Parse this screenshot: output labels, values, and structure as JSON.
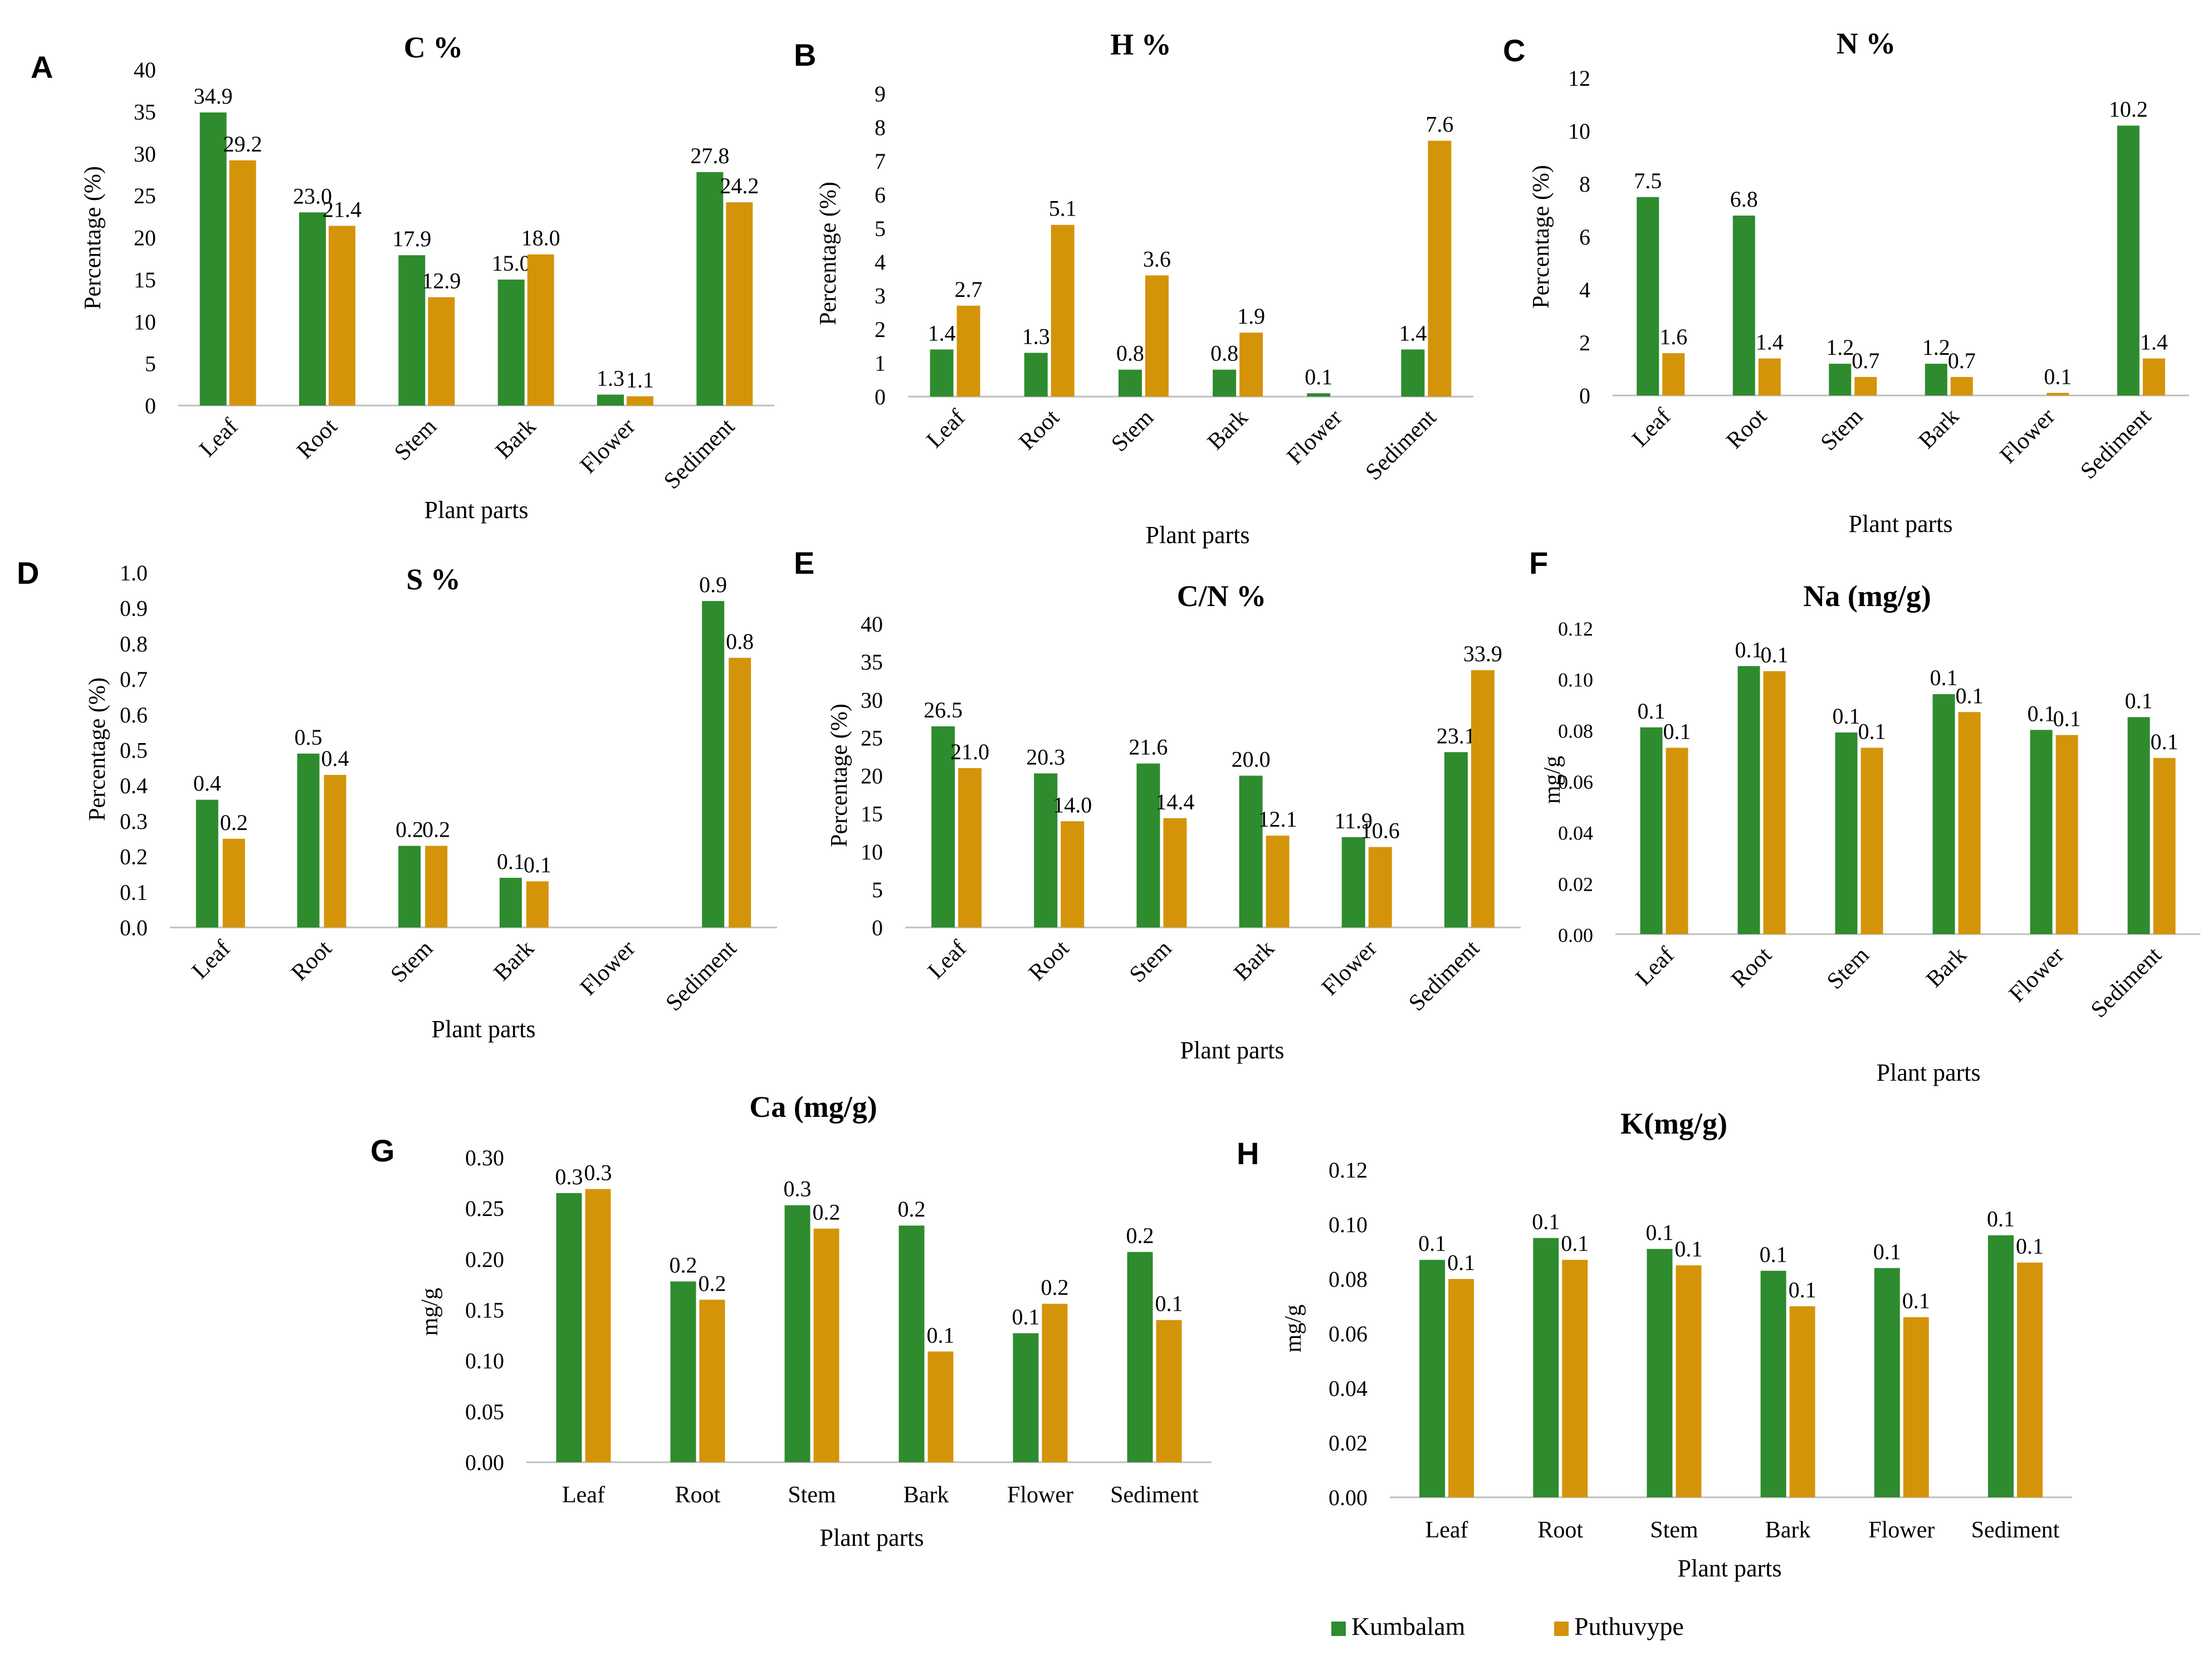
{
  "colors": {
    "Kumbalam": "#2e8b2e",
    "Puthuvype": "#d4940a",
    "axis": "#bfbfbf",
    "text": "#000000"
  },
  "legend": [
    {
      "name": "Kumbalam",
      "color": "#2e8b2e"
    },
    {
      "name": "Puthuvype",
      "color": "#d4940a"
    }
  ],
  "chart_data": [
    {
      "panel": "A",
      "title": "C %",
      "type": "bar",
      "xlabel": "Plant parts",
      "ylabel": "Percentage (%)",
      "ylim": [
        0,
        40
      ],
      "yticks": [
        "0",
        "5",
        "10",
        "15",
        "20",
        "25",
        "30",
        "35",
        "40"
      ],
      "categories": [
        "Leaf",
        "Root",
        "Stem",
        "Bark",
        "Flower",
        "Sediment"
      ],
      "series": [
        {
          "name": "Kumbalam",
          "values": [
            34.9,
            23.0,
            17.9,
            15.0,
            1.3,
            27.8
          ],
          "labels": [
            "34.9",
            "23.0",
            "17.9",
            "15.0",
            "1.3",
            "27.8"
          ]
        },
        {
          "name": "Puthuvype",
          "values": [
            29.2,
            21.4,
            12.9,
            18.0,
            1.1,
            24.2
          ],
          "labels": [
            "29.2",
            "21.4",
            "12.9",
            "18.0",
            "1.1",
            "24.2"
          ]
        }
      ]
    },
    {
      "panel": "B",
      "title": "H %",
      "type": "bar",
      "xlabel": "Plant parts",
      "ylabel": "Percentage (%)",
      "ylim": [
        0,
        9
      ],
      "yticks": [
        "0",
        "1",
        "2",
        "3",
        "4",
        "5",
        "6",
        "7",
        "8",
        "9"
      ],
      "categories": [
        "Leaf",
        "Root",
        "Stem",
        "Bark",
        "Flower",
        "Sediment"
      ],
      "series": [
        {
          "name": "Kumbalam",
          "values": [
            1.4,
            1.3,
            0.8,
            0.8,
            0.1,
            1.4
          ],
          "labels": [
            "1.4",
            "1.3",
            "0.8",
            "0.8",
            "0.1",
            "1.4"
          ]
        },
        {
          "name": "Puthuvype",
          "values": [
            2.7,
            5.1,
            3.6,
            1.9,
            0,
            7.6
          ],
          "labels": [
            "2.7",
            "5.1",
            "3.6",
            "1.9",
            "",
            "7.6"
          ]
        }
      ]
    },
    {
      "panel": "C",
      "title": "N %",
      "type": "bar",
      "xlabel": "Plant parts",
      "ylabel": "Percentage (%)",
      "ylim": [
        0,
        12
      ],
      "yticks": [
        "0",
        "2",
        "4",
        "6",
        "8",
        "10",
        "12"
      ],
      "categories": [
        "Leaf",
        "Root",
        "Stem",
        "Bark",
        "Flower",
        "Sediment"
      ],
      "series": [
        {
          "name": "Kumbalam",
          "values": [
            7.5,
            6.8,
            1.2,
            1.2,
            0,
            10.2
          ],
          "labels": [
            "7.5",
            "6.8",
            "1.2",
            "1.2",
            "",
            "10.2"
          ]
        },
        {
          "name": "Puthuvype",
          "values": [
            1.6,
            1.4,
            0.7,
            0.7,
            0.1,
            1.4
          ],
          "labels": [
            "1.6",
            "1.4",
            "0.7",
            "0.7",
            "0.1",
            "1.4"
          ]
        }
      ]
    },
    {
      "panel": "D",
      "title": "S %",
      "type": "bar",
      "xlabel": "Plant parts",
      "ylabel": "Percentage (%)",
      "ylim": [
        0,
        1
      ],
      "yticks": [
        "0.0",
        "0.1",
        "0.2",
        "0.3",
        "0.4",
        "0.5",
        "0.6",
        "0.7",
        "0.8",
        "0.9",
        "1.0"
      ],
      "categories": [
        "Leaf",
        "Root",
        "Stem",
        "Bark",
        "Flower",
        "Sediment"
      ],
      "series": [
        {
          "name": "Kumbalam",
          "values": [
            0.36,
            0.49,
            0.23,
            0.14,
            0,
            0.92
          ],
          "labels": [
            "0.4",
            "0.5",
            "0.2",
            "0.1",
            "",
            "0.9"
          ]
        },
        {
          "name": "Puthuvype",
          "values": [
            0.25,
            0.43,
            0.23,
            0.13,
            0,
            0.76
          ],
          "labels": [
            "0.2",
            "0.4",
            "0.2",
            "0.1",
            "",
            "0.8"
          ]
        }
      ]
    },
    {
      "panel": "E",
      "title": "C/N %",
      "type": "bar",
      "xlabel": "Plant parts",
      "ylabel": "Percentage (%)",
      "ylim": [
        0,
        40
      ],
      "yticks": [
        "0",
        "5",
        "10",
        "15",
        "20",
        "25",
        "30",
        "35",
        "40"
      ],
      "categories": [
        "Leaf",
        "Root",
        "Stem",
        "Bark",
        "Flower",
        "Sediment"
      ],
      "series": [
        {
          "name": "Kumbalam",
          "values": [
            26.5,
            20.3,
            21.6,
            20.0,
            11.9,
            23.1
          ],
          "labels": [
            "26.5",
            "20.3",
            "21.6",
            "20.0",
            "11.9",
            "23.1"
          ]
        },
        {
          "name": "Puthuvype",
          "values": [
            21.0,
            14.0,
            14.4,
            12.1,
            10.6,
            33.9
          ],
          "labels": [
            "21.0",
            "14.0",
            "14.4",
            "12.1",
            "10.6",
            "33.9"
          ]
        }
      ]
    },
    {
      "panel": "F",
      "title": "Na (mg/g)",
      "type": "bar",
      "xlabel": "Plant parts",
      "ylabel": "mg/g",
      "ylim": [
        0,
        0.12
      ],
      "yticks": [
        "0.00",
        "0.02",
        "0.04",
        "0.06",
        "0.08",
        "0.10",
        "0.12"
      ],
      "categories": [
        "Leaf",
        "Root",
        "Stem",
        "Bark",
        "Flower",
        "Sediment"
      ],
      "series": [
        {
          "name": "Kumbalam",
          "values": [
            0.081,
            0.105,
            0.079,
            0.094,
            0.08,
            0.085
          ],
          "labels": [
            "0.1",
            "0.1",
            "0.1",
            "0.1",
            "0.1",
            "0.1"
          ]
        },
        {
          "name": "Puthuvype",
          "values": [
            0.073,
            0.103,
            0.073,
            0.087,
            0.078,
            0.069
          ],
          "labels": [
            "0.1",
            "0.1",
            "0.1",
            "0.1",
            "0.1",
            "0.1"
          ]
        }
      ]
    },
    {
      "panel": "G",
      "title": "Ca (mg/g)",
      "type": "bar",
      "xlabel": "Plant parts",
      "ylabel": "mg/g",
      "ylim": [
        0,
        0.3
      ],
      "yticks": [
        "0.00",
        "0.05",
        "0.10",
        "0.15",
        "0.20",
        "0.25",
        "0.30"
      ],
      "categories": [
        "Leaf",
        "Root",
        "Stem",
        "Bark",
        "Flower",
        "Sediment"
      ],
      "series": [
        {
          "name": "Kumbalam",
          "values": [
            0.265,
            0.178,
            0.253,
            0.233,
            0.127,
            0.207
          ],
          "labels": [
            "0.3",
            "0.2",
            "0.3",
            "0.2",
            "0.1",
            "0.2"
          ]
        },
        {
          "name": "Puthuvype",
          "values": [
            0.269,
            0.16,
            0.23,
            0.109,
            0.156,
            0.14
          ],
          "labels": [
            "0.3",
            "0.2",
            "0.2",
            "0.1",
            "0.2",
            "0.1"
          ]
        }
      ]
    },
    {
      "panel": "H",
      "title": "K(mg/g)",
      "type": "bar",
      "xlabel": "Plant parts",
      "ylabel": "mg/g",
      "ylim": [
        0,
        0.12
      ],
      "yticks": [
        "0.00",
        "0.02",
        "0.04",
        "0.06",
        "0.08",
        "0.10",
        "0.12"
      ],
      "categories": [
        "Leaf",
        "Root",
        "Stem",
        "Bark",
        "Flower",
        "Sediment"
      ],
      "series": [
        {
          "name": "Kumbalam",
          "values": [
            0.087,
            0.095,
            0.091,
            0.083,
            0.084,
            0.096
          ],
          "labels": [
            "0.1",
            "0.1",
            "0.1",
            "0.1",
            "0.1",
            "0.1"
          ]
        },
        {
          "name": "Puthuvype",
          "values": [
            0.08,
            0.087,
            0.085,
            0.07,
            0.066,
            0.086
          ],
          "labels": [
            "0.1",
            "0.1",
            "0.1",
            "0.1",
            "0.1",
            "0.1"
          ]
        }
      ]
    }
  ]
}
